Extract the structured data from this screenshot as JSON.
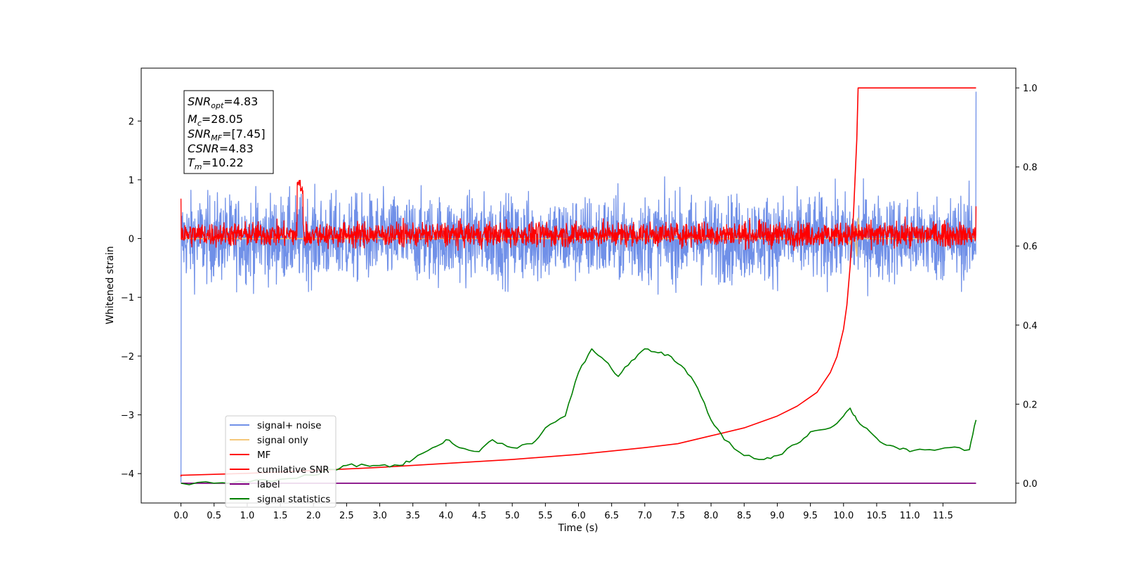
{
  "chart_data": {
    "type": "line",
    "xlabel": "Time (s)",
    "ylabel": "Whitened strain",
    "xlim": [
      -0.6,
      12.6
    ],
    "ylim_left": [
      -4.5,
      2.9
    ],
    "ylim_right": [
      -0.05,
      1.05
    ],
    "x_ticks": [
      "0.0",
      "0.5",
      "1.0",
      "1.5",
      "2.0",
      "2.5",
      "3.0",
      "3.5",
      "4.0",
      "4.5",
      "5.0",
      "5.5",
      "6.0",
      "6.5",
      "7.0",
      "7.5",
      "8.0",
      "8.5",
      "9.0",
      "9.5",
      "10.0",
      "10.5",
      "11.0",
      "11.5"
    ],
    "y_ticks_left": [
      "2",
      "1",
      "0",
      "−1",
      "−2",
      "−3",
      "−4"
    ],
    "y_ticks_right": [
      "1.0",
      "0.8",
      "0.6",
      "0.4",
      "0.2",
      "0.0"
    ],
    "legend_position": "lower-left",
    "annotation": {
      "snr_opt": "=4.83",
      "mc": "=28.05",
      "snr_mf": "=[7.45]",
      "csnr": "=4.83",
      "tm": "=10.22"
    },
    "series": [
      {
        "name": "signal+ noise",
        "color": "#7090e8",
        "axis": "left",
        "description": "noisy whitened strain, approx. range -1.3 to 1.15, spikes to -4.15 at t=0 and 2.5 at t=12",
        "noise_band": [
          -1.0,
          0.95
        ]
      },
      {
        "name": "signal only",
        "color": "#f5c87a",
        "axis": "left",
        "x": [
          0,
          9.8,
          10.0,
          10.1,
          10.15,
          10.2,
          10.22,
          10.25,
          12
        ],
        "y": [
          0,
          0,
          0.05,
          -0.1,
          0.2,
          -0.3,
          0.35,
          0,
          0
        ]
      },
      {
        "name": "MF",
        "color": "#ff0000",
        "axis": "left",
        "description": "matched-filter output, noise around 0 between -0.2 and 0.4, peak ~1.0 at t=1.8",
        "noise_band": [
          -0.18,
          0.35
        ],
        "peak": {
          "x": 1.8,
          "y": 1.0
        }
      },
      {
        "name": "cumilative SNR",
        "color": "#ff0000",
        "axis": "right",
        "x": [
          0,
          1,
          2,
          3,
          4,
          5,
          6,
          7,
          7.5,
          8,
          8.5,
          9,
          9.3,
          9.6,
          9.8,
          9.9,
          10.0,
          10.05,
          10.1,
          10.15,
          10.2,
          10.22,
          12
        ],
        "y": [
          0.02,
          0.025,
          0.032,
          0.04,
          0.05,
          0.06,
          0.073,
          0.09,
          0.1,
          0.12,
          0.14,
          0.17,
          0.195,
          0.23,
          0.28,
          0.32,
          0.39,
          0.45,
          0.55,
          0.68,
          0.87,
          1.0,
          1.0
        ]
      },
      {
        "name": "label",
        "color": "#800080",
        "axis": "right",
        "x": [
          0,
          12
        ],
        "y": [
          0.0,
          0.0
        ]
      },
      {
        "name": "signal statistics",
        "color": "#008000",
        "axis": "right",
        "x": [
          0,
          0.5,
          1.0,
          1.5,
          2.0,
          2.3,
          2.5,
          2.8,
          3.0,
          3.3,
          3.5,
          3.8,
          4.0,
          4.2,
          4.5,
          4.7,
          5.0,
          5.3,
          5.5,
          5.8,
          6.0,
          6.2,
          6.4,
          6.6,
          6.8,
          7.0,
          7.2,
          7.4,
          7.6,
          7.8,
          8.0,
          8.2,
          8.5,
          8.8,
          9.0,
          9.3,
          9.5,
          9.8,
          10.0,
          10.1,
          10.2,
          10.4,
          10.6,
          10.8,
          11.0,
          11.3,
          11.6,
          11.9,
          12.0
        ],
        "y": [
          0.0,
          0.0,
          0.002,
          0.01,
          0.02,
          0.035,
          0.045,
          0.045,
          0.045,
          0.045,
          0.06,
          0.09,
          0.11,
          0.09,
          0.08,
          0.11,
          0.09,
          0.1,
          0.14,
          0.17,
          0.28,
          0.34,
          0.31,
          0.27,
          0.31,
          0.34,
          0.33,
          0.32,
          0.29,
          0.24,
          0.16,
          0.11,
          0.07,
          0.06,
          0.07,
          0.1,
          0.13,
          0.14,
          0.17,
          0.19,
          0.16,
          0.13,
          0.1,
          0.09,
          0.08,
          0.085,
          0.09,
          0.085,
          0.16
        ]
      }
    ]
  }
}
